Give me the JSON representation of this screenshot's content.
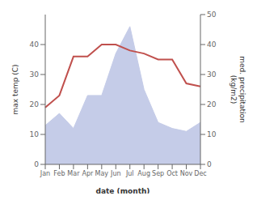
{
  "chart_data": {
    "type": "line",
    "categories": [
      "Jan",
      "Feb",
      "Mar",
      "Apr",
      "May",
      "Jun",
      "Jul",
      "Aug",
      "Sep",
      "Oct",
      "Nov",
      "Dec"
    ],
    "xlabel": "date (month)",
    "ylabel": "max temp (C)",
    "y2label": "med. precipitation\n(kg/m2)",
    "ylim": [
      0,
      50
    ],
    "yticks": [
      0,
      10,
      20,
      30,
      40
    ],
    "y2lim": [
      0,
      50
    ],
    "y2ticks": [
      0,
      10,
      20,
      30,
      40,
      50
    ],
    "series": [
      {
        "type": "area",
        "axis": "y2",
        "color": "#c5cce8",
        "values": [
          13,
          17,
          12,
          23,
          23,
          37,
          46,
          25,
          14,
          12,
          11,
          14
        ]
      },
      {
        "type": "line",
        "color": "#c0504d",
        "values": [
          19,
          23,
          36,
          36,
          40,
          40,
          38,
          37,
          35,
          35,
          27,
          26
        ]
      }
    ]
  }
}
